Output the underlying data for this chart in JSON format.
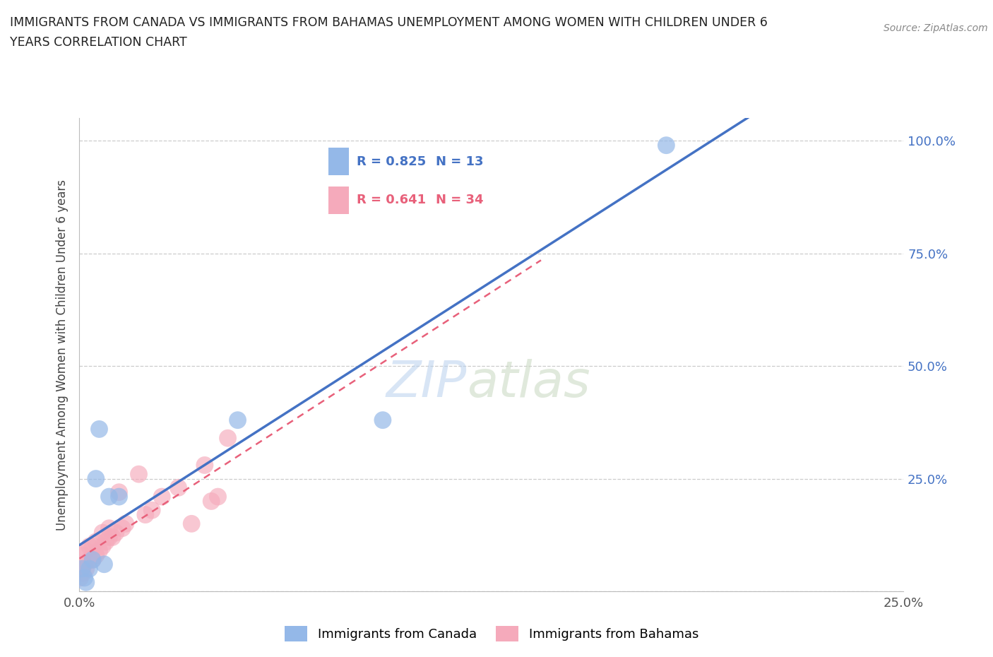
{
  "title_line1": "IMMIGRANTS FROM CANADA VS IMMIGRANTS FROM BAHAMAS UNEMPLOYMENT AMONG WOMEN WITH CHILDREN UNDER 6",
  "title_line2": "YEARS CORRELATION CHART",
  "source": "Source: ZipAtlas.com",
  "ylabel_label": "Unemployment Among Women with Children Under 6 years",
  "xlim": [
    0.0,
    0.25
  ],
  "ylim": [
    0.0,
    1.05
  ],
  "xtick_vals": [
    0.0,
    0.05,
    0.1,
    0.15,
    0.2,
    0.25
  ],
  "ytick_vals": [
    0.0,
    0.25,
    0.5,
    0.75,
    1.0
  ],
  "xticklabels": [
    "0.0%",
    "",
    "",
    "",
    "",
    "25.0%"
  ],
  "yticklabels": [
    "",
    "25.0%",
    "50.0%",
    "75.0%",
    "100.0%"
  ],
  "canada_R": 0.825,
  "canada_N": 13,
  "bahamas_R": 0.641,
  "bahamas_N": 34,
  "canada_color": "#94B8E8",
  "bahamas_color": "#F5AABB",
  "canada_line_color": "#4472C4",
  "bahamas_line_color": "#E8607A",
  "watermark_zip": "ZIP",
  "watermark_atlas": "atlas",
  "canada_x": [
    0.0008,
    0.0015,
    0.002,
    0.003,
    0.004,
    0.005,
    0.006,
    0.0075,
    0.009,
    0.012,
    0.048,
    0.092,
    0.178
  ],
  "canada_y": [
    0.05,
    0.03,
    0.02,
    0.05,
    0.07,
    0.25,
    0.36,
    0.06,
    0.21,
    0.21,
    0.38,
    0.38,
    0.99
  ],
  "bahamas_x": [
    0.0002,
    0.0005,
    0.001,
    0.001,
    0.0015,
    0.002,
    0.002,
    0.003,
    0.003,
    0.004,
    0.004,
    0.005,
    0.005,
    0.006,
    0.007,
    0.007,
    0.008,
    0.009,
    0.009,
    0.01,
    0.011,
    0.012,
    0.013,
    0.014,
    0.018,
    0.02,
    0.022,
    0.025,
    0.03,
    0.034,
    0.038,
    0.04,
    0.042,
    0.045
  ],
  "bahamas_y": [
    0.03,
    0.05,
    0.04,
    0.08,
    0.06,
    0.05,
    0.09,
    0.07,
    0.1,
    0.07,
    0.1,
    0.08,
    0.11,
    0.09,
    0.1,
    0.13,
    0.11,
    0.12,
    0.14,
    0.12,
    0.13,
    0.22,
    0.14,
    0.15,
    0.26,
    0.17,
    0.18,
    0.21,
    0.23,
    0.15,
    0.28,
    0.2,
    0.21,
    0.34
  ],
  "legend_label_canada": "Immigrants from Canada",
  "legend_label_bahamas": "Immigrants from Bahamas"
}
